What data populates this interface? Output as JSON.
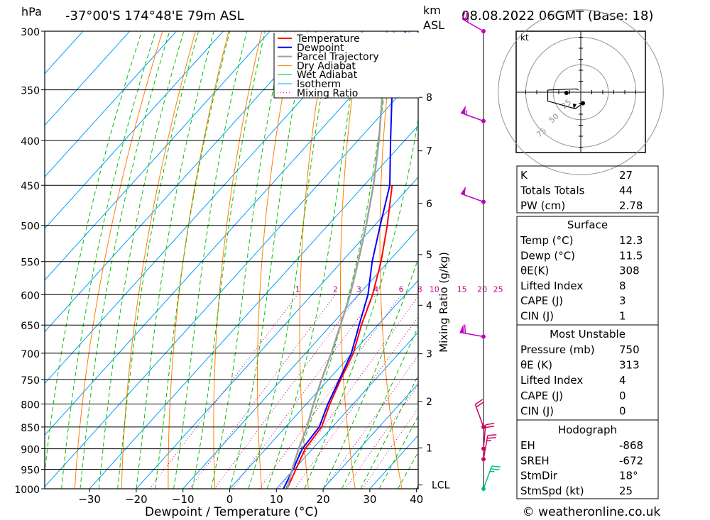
{
  "header": {
    "hpa_label": "hPa",
    "location": "-37°00'S 174°48'E 79m ASL",
    "km_label": "km",
    "asl_label": "ASL",
    "datetime": "08.08.2022 06GMT (Base: 18)"
  },
  "footer": {
    "copyright": "© weatheronline.co.uk"
  },
  "chart_data": {
    "type": "skew-t",
    "xlabel": "Dewpoint / Temperature (°C)",
    "ylabel_left": "hPa",
    "ylabel_right": "Mixing Ratio (g/kg)",
    "x_ticks": [
      -30,
      -20,
      -10,
      0,
      10,
      20,
      30,
      40
    ],
    "xlim": [
      -40,
      40
    ],
    "pressure_levels": [
      300,
      350,
      400,
      450,
      500,
      550,
      600,
      650,
      700,
      750,
      800,
      850,
      900,
      950,
      1000
    ],
    "km_ticks": [
      {
        "km": "8",
        "p": 357
      },
      {
        "km": "7",
        "p": 411
      },
      {
        "km": "6",
        "p": 472
      },
      {
        "km": "5",
        "p": 540
      },
      {
        "km": "4",
        "p": 617
      },
      {
        "km": "3",
        "p": 701
      },
      {
        "km": "2",
        "p": 795
      },
      {
        "km": "1",
        "p": 898
      },
      {
        "km": "LCL",
        "p": 990
      }
    ],
    "mixing_ratio_labels": [
      "1",
      "2",
      "3",
      "4",
      "6",
      "8",
      "10",
      "15",
      "20",
      "25"
    ],
    "mixing_ratio_values": [
      1,
      2,
      3,
      4,
      6,
      8,
      10,
      15,
      20,
      25
    ],
    "legend": [
      "Temperature",
      "Dewpoint",
      "Parcel Trajectory",
      "Dry Adiabat",
      "Wet Adiabat",
      "Isotherm",
      "Mixing Ratio"
    ],
    "colors": {
      "temperature": "#ff0000",
      "dewpoint": "#0000ff",
      "parcel": "#a0a0a0",
      "dry_adiabat": "#ff8000",
      "wet_adiabat": "#00c000",
      "isotherm": "#00a0ff",
      "mixing_ratio": "#c00080",
      "wind": "#c000c0",
      "wind_surface": "#00c080"
    },
    "series": [
      {
        "name": "Temperature",
        "points": [
          [
            1000,
            12.3
          ],
          [
            950,
            10.4
          ],
          [
            900,
            8.4
          ],
          [
            850,
            7.7
          ],
          [
            800,
            5.0
          ],
          [
            750,
            2.6
          ],
          [
            700,
            0.2
          ],
          [
            650,
            -3.5
          ],
          [
            600,
            -7.0
          ],
          [
            550,
            -11.6
          ],
          [
            500,
            -17.3
          ],
          [
            450,
            -24.0
          ]
        ]
      },
      {
        "name": "Dewpoint",
        "points": [
          [
            1000,
            11.5
          ],
          [
            950,
            9.8
          ],
          [
            900,
            7.8
          ],
          [
            850,
            7.2
          ],
          [
            800,
            4.6
          ],
          [
            750,
            2.3
          ],
          [
            700,
            -0.2
          ],
          [
            650,
            -4.0
          ],
          [
            600,
            -8.0
          ],
          [
            550,
            -13.5
          ],
          [
            500,
            -18.8
          ],
          [
            450,
            -24.5
          ],
          [
            400,
            -33.0
          ],
          [
            350,
            -42.5
          ],
          [
            300,
            -51.0
          ]
        ]
      },
      {
        "name": "Parcel Trajectory",
        "points": [
          [
            1000,
            12.3
          ],
          [
            950,
            9.6
          ],
          [
            900,
            7.0
          ],
          [
            850,
            4.6
          ],
          [
            800,
            1.5
          ],
          [
            750,
            -1.5
          ],
          [
            700,
            -4.5
          ],
          [
            650,
            -8.0
          ],
          [
            600,
            -11.8
          ],
          [
            550,
            -16.5
          ],
          [
            500,
            -21.8
          ],
          [
            450,
            -28.0
          ],
          [
            400,
            -35.5
          ],
          [
            350,
            -44.5
          ],
          [
            300,
            -55.0
          ]
        ]
      }
    ],
    "wind_barbs": [
      {
        "p": 300,
        "dir": 300,
        "spd": 25
      },
      {
        "p": 380,
        "dir": 290,
        "spd": 55
      },
      {
        "p": 470,
        "dir": 290,
        "spd": 50
      },
      {
        "p": 670,
        "dir": 280,
        "spd": 60
      },
      {
        "p": 850,
        "dir": 340,
        "spd": 20
      },
      {
        "p": 900,
        "dir": 5,
        "spd": 20
      },
      {
        "p": 925,
        "dir": 10,
        "spd": 25
      },
      {
        "p": 1000,
        "dir": 20,
        "spd": 25
      }
    ],
    "hodograph": {
      "unit": "kt",
      "ring_labels": [
        "25",
        "50",
        "75"
      ],
      "trace": [
        [
          2,
          -10
        ],
        [
          -5,
          -15
        ],
        [
          -30,
          -8
        ],
        [
          -30,
          2
        ],
        [
          -4,
          3
        ],
        [
          -2,
          2
        ]
      ]
    }
  },
  "indices": {
    "top": [
      {
        "label": "K",
        "value": "27"
      },
      {
        "label": "Totals Totals",
        "value": "44"
      },
      {
        "label": "PW (cm)",
        "value": "2.78"
      }
    ],
    "surface": {
      "title": "Surface",
      "rows": [
        {
          "label": "Temp (°C)",
          "value": "12.3"
        },
        {
          "label": "Dewp (°C)",
          "value": "11.5"
        },
        {
          "label": "θE(K)",
          "value": "308"
        },
        {
          "label": "Lifted Index",
          "value": "8"
        },
        {
          "label": "CAPE (J)",
          "value": "3"
        },
        {
          "label": "CIN (J)",
          "value": "1"
        }
      ]
    },
    "most_unstable": {
      "title": "Most Unstable",
      "rows": [
        {
          "label": "Pressure (mb)",
          "value": "750"
        },
        {
          "label": "θE (K)",
          "value": "313"
        },
        {
          "label": "Lifted Index",
          "value": "4"
        },
        {
          "label": "CAPE (J)",
          "value": "0"
        },
        {
          "label": "CIN (J)",
          "value": "0"
        }
      ]
    },
    "hodograph": {
      "title": "Hodograph",
      "rows": [
        {
          "label": "EH",
          "value": "-868"
        },
        {
          "label": "SREH",
          "value": "-672"
        },
        {
          "label": "StmDir",
          "value": "18°"
        },
        {
          "label": "StmSpd (kt)",
          "value": "25"
        }
      ]
    }
  }
}
